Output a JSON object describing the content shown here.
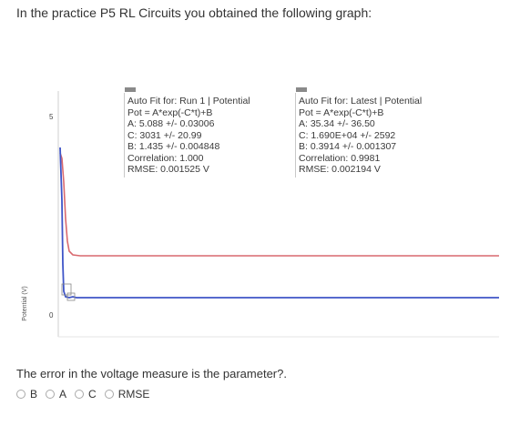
{
  "question": "In the practice P5  RL Circuits you obtained the following graph:",
  "graph": {
    "y_axis_label": "Potential (V)",
    "y_ticks": [
      "5",
      "0"
    ],
    "colors": {
      "run1": "#d9696e",
      "latest": "#3f55c8",
      "axis": "#cfcfcf"
    },
    "fit_run1": {
      "lines": [
        "Auto Fit for: Run 1 | Potential",
        "Pot = A*exp(-C*t)+B",
        "A: 5.088 +/- 0.03006",
        "C: 3031 +/- 20.99",
        "B: 1.435 +/- 0.004848",
        "Correlation: 1.000",
        "RMSE: 0.001525 V"
      ]
    },
    "fit_latest": {
      "lines": [
        "Auto Fit for: Latest | Potential",
        "Pot = A*exp(-C*t)+B",
        "A: 35.34 +/- 36.50",
        "C: 1.690E+04 +/- 2592",
        "B: 0.3914 +/- 0.001307",
        "Correlation: 0.9981",
        "RMSE: 0.002194 V"
      ]
    }
  },
  "prompt": "The error in the voltage measure is the parameter?.",
  "options": [
    "B",
    "A",
    "C",
    "RMSE"
  ]
}
